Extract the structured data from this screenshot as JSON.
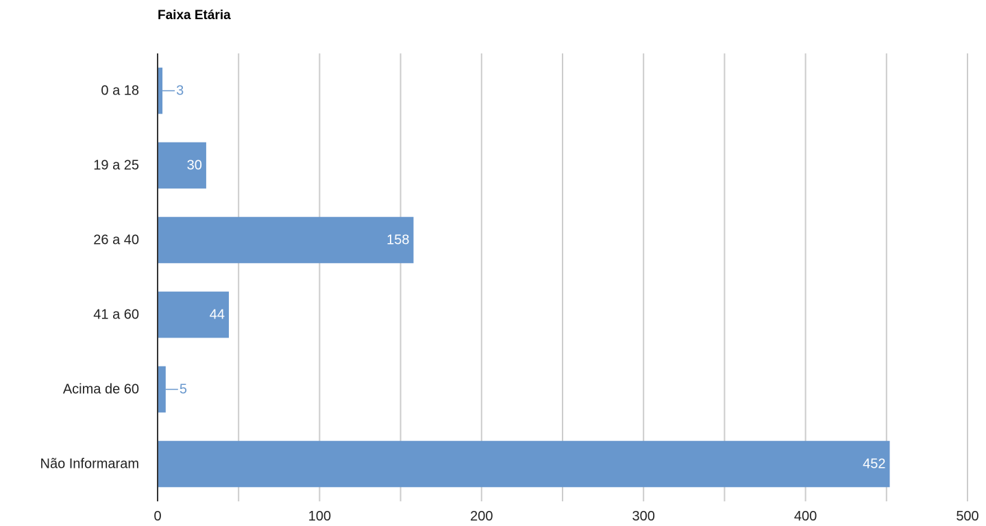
{
  "chart_data": {
    "type": "bar",
    "orientation": "horizontal",
    "title": "Faixa Etária",
    "xlabel": "",
    "ylabel": "",
    "categories": [
      "0 a 18",
      "19 a 25",
      "26 a 40",
      "41 a 60",
      "Acima de 60",
      "Não Informaram"
    ],
    "values": [
      3,
      30,
      158,
      44,
      5,
      452
    ],
    "data_labels": [
      "3",
      "30",
      "158",
      "44",
      "5",
      "452"
    ],
    "xlim": [
      0,
      500
    ],
    "major_ticks": [
      0,
      100,
      200,
      300,
      400,
      500
    ],
    "tick_labels": [
      "0",
      "100",
      "200",
      "300",
      "400",
      "500"
    ],
    "minor_gridlines": [
      50,
      150,
      250,
      350,
      450
    ],
    "grid": true,
    "legend": "none",
    "colors": {
      "bar": "#6897cd",
      "grid": "#cccccc",
      "axis": "#333333",
      "label_inside": "#ffffff",
      "label_outside": "#6897cd",
      "text": "#222222"
    }
  }
}
